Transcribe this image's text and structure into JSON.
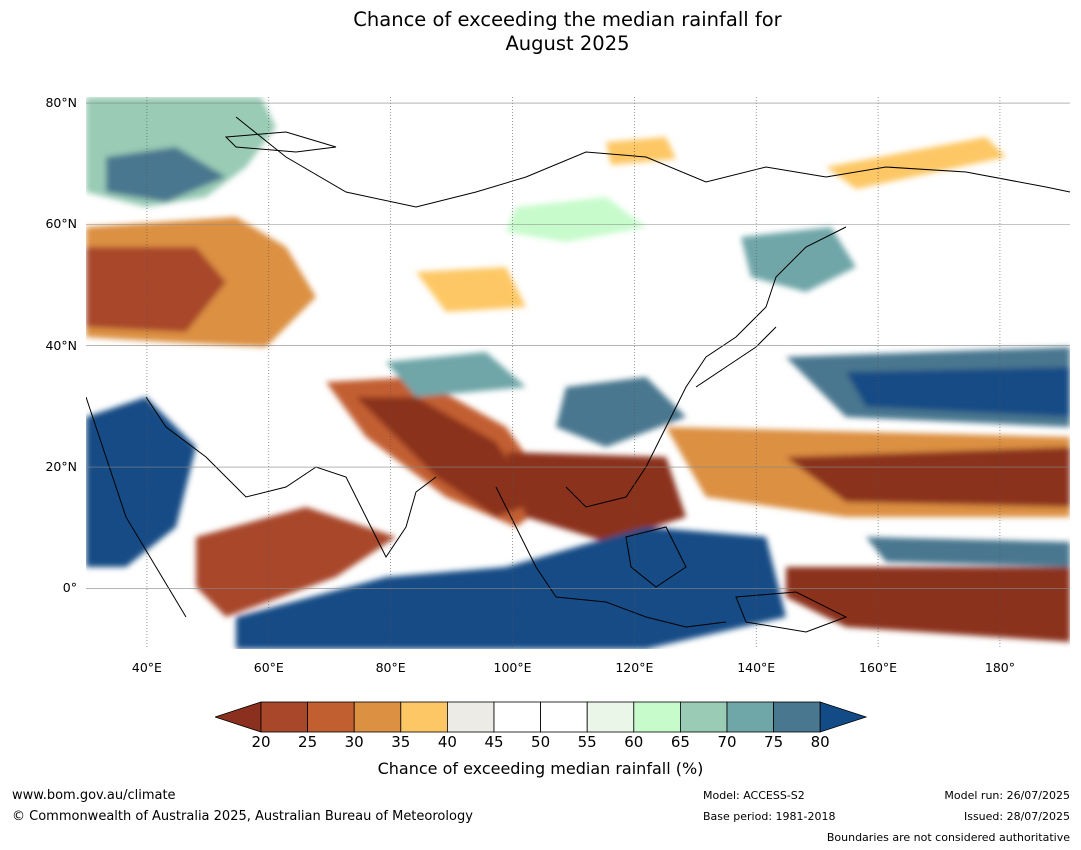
{
  "title": [
    "Chance of exceeding the median rainfall for",
    "August 2025"
  ],
  "map": {
    "lat_ticks": [
      {
        "value": 80,
        "label": "80°N"
      },
      {
        "value": 60,
        "label": "60°N"
      },
      {
        "value": 40,
        "label": "40°N"
      },
      {
        "value": 20,
        "label": "20°N"
      },
      {
        "value": 0,
        "label": "0°"
      }
    ],
    "lon_ticks": [
      {
        "value": 40,
        "label": "40°E"
      },
      {
        "value": 60,
        "label": "60°E"
      },
      {
        "value": 80,
        "label": "80°E"
      },
      {
        "value": 100,
        "label": "100°E"
      },
      {
        "value": 120,
        "label": "120°E"
      },
      {
        "value": 140,
        "label": "140°E"
      },
      {
        "value": 160,
        "label": "160°E"
      },
      {
        "value": 180,
        "label": "180°"
      }
    ],
    "lon_range": [
      30,
      191.5
    ],
    "lat_range": [
      -10,
      81
    ]
  },
  "colorbar": {
    "title": "Chance of exceeding median rainfall (%)",
    "levels": [
      "20",
      "25",
      "30",
      "35",
      "40",
      "45",
      "50",
      "55",
      "60",
      "65",
      "70",
      "75",
      "80"
    ],
    "under_color": "#8b301f",
    "over_color": "#124b85",
    "colors": [
      "#a8472a",
      "#c25f30",
      "#dc9042",
      "#fdc765",
      "#edebe6",
      "#ffffff",
      "#ffffff",
      "#e9f6e8",
      "#c8fbcc",
      "#99cbb5",
      "#6fa6a8",
      "#48778f"
    ]
  },
  "footer": {
    "website": "www.bom.gov.au/climate",
    "copyright": "© Commonwealth of Australia 2025, Australian Bureau of Meteorology",
    "model": "Model: ACCESS-S2",
    "base_period": "Base period: 1981-2018",
    "model_run": "Model run: 26/07/2025",
    "issued": "Issued: 28/07/2025",
    "disclaimer": "Boundaries are not considered authoritative"
  }
}
